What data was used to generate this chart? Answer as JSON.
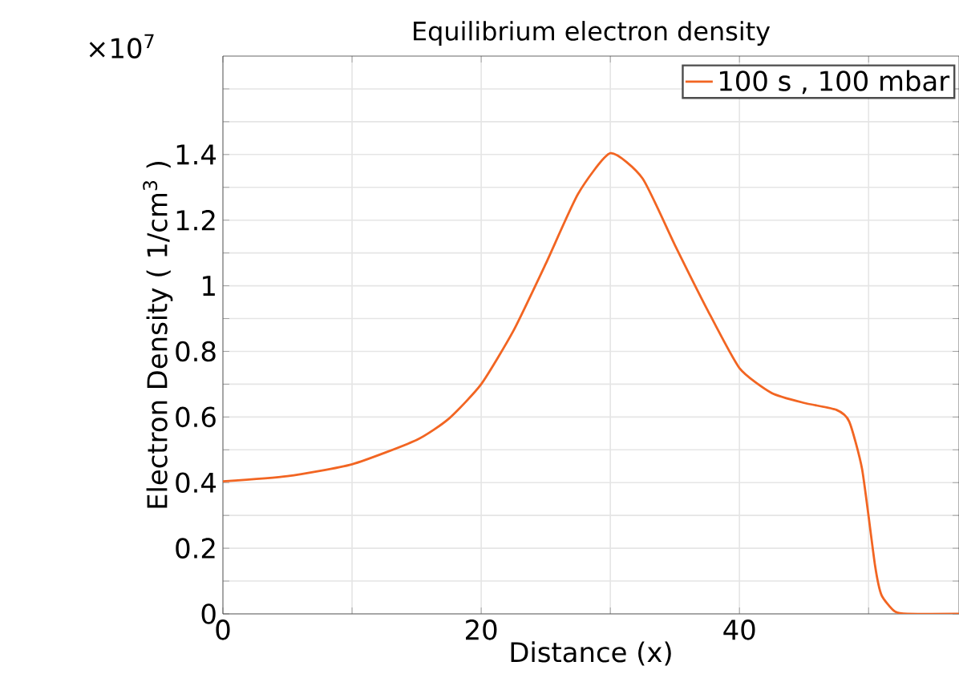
{
  "chart_data": {
    "type": "line",
    "title": "Equilibrium electron density",
    "xlabel": "Distance (x)",
    "ylabel": "Electron Density ( 1/cm$^{3}$ )",
    "annotations": [
      "×10$^{7}$"
    ],
    "xlim": [
      0,
      57
    ],
    "ylim": [
      0,
      1.7
    ],
    "xticks": [
      0,
      {
        "value": 10,
        "label": null
      },
      20,
      {
        "value": 30,
        "label": null
      },
      40,
      {
        "value": 50,
        "label": null
      }
    ],
    "yticks": [
      0,
      {
        "value": 0.1,
        "label": null
      },
      0.2,
      {
        "value": 0.3,
        "label": null
      },
      0.4,
      {
        "value": 0.5,
        "label": null
      },
      0.6,
      {
        "value": 0.7,
        "label": null
      },
      0.8,
      {
        "value": 0.9,
        "label": null
      },
      1,
      {
        "value": 1.1,
        "label": null
      },
      1.2,
      {
        "value": 1.3,
        "label": null
      },
      1.4,
      {
        "value": 1.5,
        "label": null
      },
      {
        "value": 1.6,
        "label": null
      }
    ],
    "grid": true,
    "legend": "top right",
    "marker": "none",
    "line_style": "solid",
    "x": [
      0,
      5,
      10,
      15,
      17.5,
      20,
      22.5,
      25,
      27.5,
      30,
      32.5,
      35,
      37.5,
      40,
      42.5,
      45,
      47.5,
      48.5,
      49.5,
      50.5,
      51,
      52,
      53,
      57
    ],
    "series": [
      {
        "name": "100 s , 100 mbar",
        "color": "#f26522",
        "values": [
          0.404,
          0.42,
          0.456,
          0.53,
          0.595,
          0.7,
          0.863,
          1.067,
          1.28,
          1.404,
          1.327,
          1.124,
          0.928,
          0.749,
          0.673,
          0.643,
          0.622,
          0.586,
          0.44,
          0.147,
          0.057,
          0.008,
          0,
          0
        ]
      }
    ]
  }
}
